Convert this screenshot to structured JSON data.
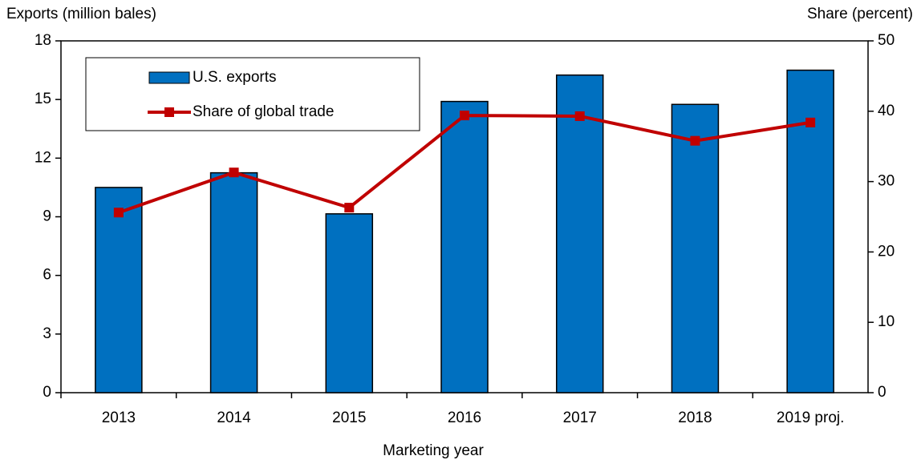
{
  "chart_data": {
    "type": "bar_line",
    "y_label": "Exports (million bales)",
    "y2_label": "Share (percent)",
    "x_label": "Marketing year",
    "categories": [
      "2013",
      "2014",
      "2015",
      "2016",
      "2017",
      "2018",
      "2019 proj."
    ],
    "series": [
      {
        "name": "U.S. exports",
        "type": "bar",
        "color": "#0070c0",
        "values": [
          10.5,
          11.25,
          9.15,
          14.9,
          16.25,
          14.75,
          16.5
        ]
      },
      {
        "name": "Share of global trade",
        "type": "line",
        "axis": "y2",
        "color": "#c00000",
        "values": [
          25.6,
          31.3,
          26.3,
          39.4,
          39.3,
          35.8,
          38.4
        ]
      }
    ],
    "ylim": [
      0,
      18
    ],
    "yticks": [
      0,
      3,
      6,
      9,
      12,
      15,
      18
    ],
    "y2lim": [
      0,
      50
    ],
    "y2ticks": [
      0,
      10,
      20,
      30,
      40,
      50
    ],
    "legend": "upper left"
  }
}
